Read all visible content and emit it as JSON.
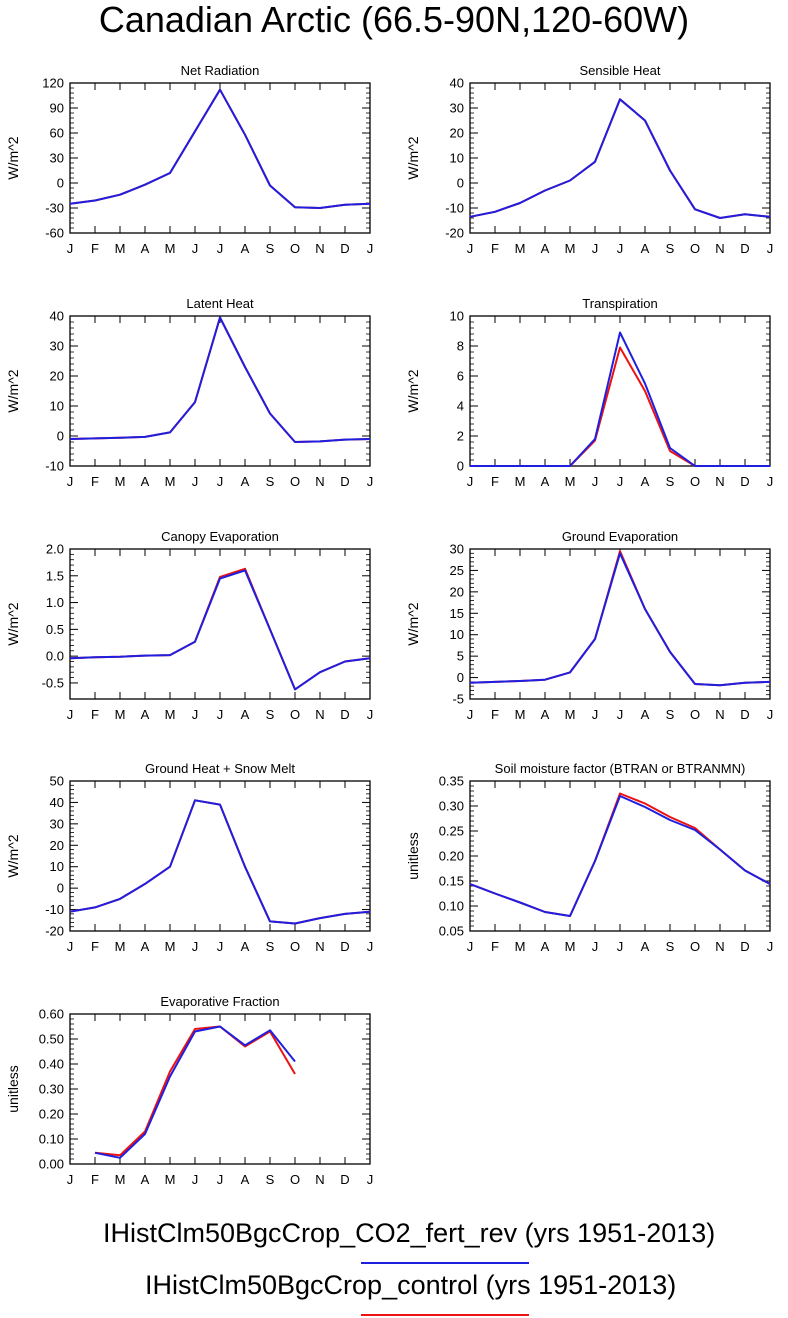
{
  "page_title": "Canadian Arctic (66.5-90N,120-60W)",
  "months": [
    "J",
    "F",
    "M",
    "A",
    "M",
    "J",
    "J",
    "A",
    "S",
    "O",
    "N",
    "D",
    "J"
  ],
  "colors": {
    "fert": "#1f1fe0",
    "control": "#ee1111"
  },
  "legend": [
    {
      "label": "IHistClm50BgcCrop_CO2_fert_rev (yrs 1951-2013)",
      "color": "#1f1fe0"
    },
    {
      "label": "IHistClm50BgcCrop_control (yrs 1951-2013)",
      "color": "#ee1111"
    }
  ],
  "chart_data": [
    {
      "type": "line",
      "title": "Net Radiation",
      "ylabel": "W/m^2",
      "ylim": [
        -60,
        120
      ],
      "yticks": [
        "-60",
        "-30",
        "0",
        "30",
        "60",
        "90",
        "120"
      ],
      "yticks_values": [
        -60,
        -30,
        0,
        30,
        60,
        90,
        120
      ],
      "series": [
        {
          "values": [
            -25,
            -21,
            -14,
            -2,
            12,
            62,
            112,
            58,
            -3,
            -29,
            -30,
            -26,
            -25
          ]
        },
        {
          "values": [
            -25,
            -21,
            -14,
            -2,
            12,
            62,
            112,
            58,
            -3,
            -29,
            -30,
            -26,
            -25
          ]
        }
      ]
    },
    {
      "type": "line",
      "title": "Sensible Heat",
      "ylabel": "W/m^2",
      "ylim": [
        -20,
        40
      ],
      "yticks": [
        "-20",
        "-10",
        "0",
        "10",
        "20",
        "30",
        "40"
      ],
      "yticks_values": [
        -20,
        -10,
        0,
        10,
        20,
        30,
        40
      ],
      "series": [
        {
          "values": [
            -13.5,
            -11.5,
            -8,
            -3,
            1,
            8.5,
            33.5,
            25,
            5,
            -10.5,
            -14,
            -12.5,
            -13.5
          ]
        },
        {
          "values": [
            -13.5,
            -11.5,
            -8,
            -3,
            1,
            8.5,
            33.5,
            25,
            5,
            -10.5,
            -14,
            -12.5,
            -13.5
          ]
        }
      ]
    },
    {
      "type": "line",
      "title": "Latent Heat",
      "ylabel": "W/m^2",
      "ylim": [
        -10,
        40
      ],
      "yticks": [
        "-10",
        "0",
        "10",
        "20",
        "30",
        "40"
      ],
      "yticks_values": [
        -10,
        0,
        10,
        20,
        30,
        40
      ],
      "series": [
        {
          "values": [
            -1,
            -0.8,
            -0.6,
            -0.3,
            1.2,
            11.3,
            39.5,
            23,
            7.5,
            -2,
            -1.8,
            -1.2,
            -1
          ]
        },
        {
          "values": [
            -1,
            -0.8,
            -0.6,
            -0.3,
            1.2,
            11.3,
            39.5,
            23,
            7.5,
            -2,
            -1.8,
            -1.2,
            -1
          ]
        }
      ]
    },
    {
      "type": "line",
      "title": "Transpiration",
      "ylabel": "W/m^2",
      "ylim": [
        0,
        10
      ],
      "yticks": [
        "0",
        "2",
        "4",
        "6",
        "8",
        "10"
      ],
      "yticks_values": [
        0,
        2,
        4,
        6,
        8,
        10
      ],
      "series": [
        {
          "values": [
            0,
            0,
            0,
            0,
            0,
            1.8,
            8.9,
            5.5,
            1.2,
            0,
            0,
            0,
            0
          ]
        },
        {
          "values": [
            0,
            0,
            0,
            0,
            0,
            1.7,
            7.9,
            5,
            1.0,
            0,
            0,
            0,
            0
          ]
        }
      ]
    },
    {
      "type": "line",
      "title": "Canopy Evaporation",
      "ylabel": "W/m^2",
      "ylim": [
        -0.8,
        2.0
      ],
      "yticks": [
        "-0.5",
        "0.0",
        "0.5",
        "1.0",
        "1.5",
        "2.0"
      ],
      "yticks_values": [
        -0.5,
        0,
        0.5,
        1.0,
        1.5,
        2.0
      ],
      "series": [
        {
          "values": [
            -0.04,
            -0.02,
            -0.01,
            0.01,
            0.02,
            0.27,
            1.45,
            1.6,
            0.5,
            -0.62,
            -0.3,
            -0.1,
            -0.04
          ]
        },
        {
          "values": [
            -0.04,
            -0.02,
            -0.01,
            0.01,
            0.02,
            0.27,
            1.48,
            1.63,
            0.5,
            -0.62,
            -0.3,
            -0.1,
            -0.04
          ]
        }
      ]
    },
    {
      "type": "line",
      "title": "Ground Evaporation",
      "ylabel": "W/m^2",
      "ylim": [
        -5,
        30
      ],
      "yticks": [
        "-5",
        "0",
        "5",
        "10",
        "15",
        "20",
        "25",
        "30"
      ],
      "yticks_values": [
        -5,
        0,
        5,
        10,
        15,
        20,
        25,
        30
      ],
      "series": [
        {
          "values": [
            -1.2,
            -1,
            -0.8,
            -0.5,
            1.2,
            9,
            29,
            16,
            6,
            -1.5,
            -1.8,
            -1.2,
            -1
          ]
        },
        {
          "values": [
            -1.2,
            -1,
            -0.8,
            -0.5,
            1.2,
            9,
            29.5,
            16,
            6,
            -1.5,
            -1.8,
            -1.2,
            -1
          ]
        }
      ]
    },
    {
      "type": "line",
      "title": "Ground Heat + Snow Melt",
      "ylabel": "W/m^2",
      "ylim": [
        -20,
        50
      ],
      "yticks": [
        "-20",
        "-10",
        "0",
        "10",
        "20",
        "30",
        "40",
        "50"
      ],
      "yticks_values": [
        -20,
        -10,
        0,
        10,
        20,
        30,
        40,
        50
      ],
      "series": [
        {
          "values": [
            -11,
            -9,
            -5,
            2,
            10,
            41,
            39,
            10,
            -15.5,
            -16.5,
            -14,
            -12,
            -11
          ]
        },
        {
          "values": [
            -11,
            -9,
            -5,
            2,
            10,
            41,
            39,
            10,
            -15.5,
            -16.5,
            -14,
            -12,
            -11
          ]
        }
      ]
    },
    {
      "type": "line",
      "title": "Soil moisture factor (BTRAN or BTRANMN)",
      "ylabel": "unitless",
      "ylim": [
        0.05,
        0.35
      ],
      "yticks": [
        "0.05",
        "0.10",
        "0.15",
        "0.20",
        "0.25",
        "0.30",
        "0.35"
      ],
      "yticks_values": [
        0.05,
        0.1,
        0.15,
        0.2,
        0.25,
        0.3,
        0.35
      ],
      "series": [
        {
          "values": [
            0.144,
            0.125,
            0.107,
            0.088,
            0.08,
            0.19,
            0.32,
            0.298,
            0.272,
            0.252,
            0.213,
            0.171,
            0.144
          ]
        },
        {
          "values": [
            0.144,
            0.125,
            0.107,
            0.088,
            0.08,
            0.19,
            0.325,
            0.305,
            0.278,
            0.256,
            0.213,
            0.171,
            0.144
          ]
        }
      ]
    },
    {
      "type": "line",
      "title": "Evaporative Fraction",
      "ylabel": "unitless",
      "ylim": [
        0.0,
        0.6
      ],
      "yticks": [
        "0.00",
        "0.10",
        "0.20",
        "0.30",
        "0.40",
        "0.50",
        "0.60"
      ],
      "yticks_values": [
        0,
        0.1,
        0.2,
        0.3,
        0.4,
        0.5,
        0.6
      ],
      "series": [
        {
          "values": [
            null,
            0.045,
            0.025,
            0.12,
            0.35,
            0.53,
            0.55,
            0.475,
            0.535,
            0.41,
            null,
            null,
            null
          ]
        },
        {
          "values": [
            null,
            0.045,
            0.035,
            0.13,
            0.37,
            0.54,
            0.55,
            0.47,
            0.53,
            0.36,
            null,
            null,
            null
          ]
        }
      ]
    }
  ]
}
